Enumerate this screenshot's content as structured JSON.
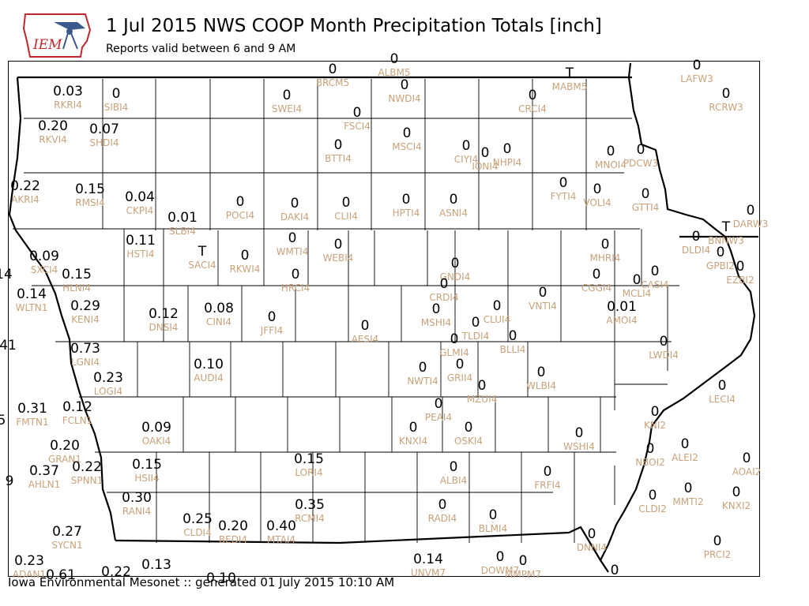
{
  "header": {
    "title": "1 Jul 2015 NWS COOP Month Precipitation Totals [inch]",
    "subtitle": "Reports valid between 6 and 9 AM",
    "logo_text": "IEM"
  },
  "footer": {
    "text": "Iowa Environmental Mesonet :: generated 01 July 2015 10:10 AM"
  },
  "colors": {
    "value": "#000000",
    "station": "#c8a27a",
    "border": "#000000",
    "logo_red": "#c0272d",
    "logo_blue": "#3a5a8c"
  },
  "stations": [
    {
      "id": "RKRI4",
      "value": "0.03"
    },
    {
      "id": "SIBI4",
      "value": "0"
    },
    {
      "id": "BRCM5",
      "value": "0"
    },
    {
      "id": "ALBM5",
      "value": "0"
    },
    {
      "id": "NWDI4",
      "value": "0"
    },
    {
      "id": "MABM5",
      "value": "T"
    },
    {
      "id": "LAFW3",
      "value": "0"
    },
    {
      "id": "RCRW3",
      "value": "0"
    },
    {
      "id": "SWEI4",
      "value": "0"
    },
    {
      "id": "CRCI4",
      "value": "0"
    },
    {
      "id": "FSCI4",
      "value": "0"
    },
    {
      "id": "RKVI4",
      "value": "0.20"
    },
    {
      "id": "SHDI4",
      "value": "0.07"
    },
    {
      "id": "MSCI4",
      "value": "0"
    },
    {
      "id": "BTTI4",
      "value": "0"
    },
    {
      "id": "CIYI4",
      "value": "0"
    },
    {
      "id": "IONI4",
      "value": "0"
    },
    {
      "id": "NHPI4",
      "value": "0"
    },
    {
      "id": "MNOI4",
      "value": "0"
    },
    {
      "id": "PDCW3",
      "value": "0"
    },
    {
      "id": "AKRI4",
      "value": "0.22"
    },
    {
      "id": "RMSI4",
      "value": "0.15"
    },
    {
      "id": "CKPI4",
      "value": "0.04"
    },
    {
      "id": "POCI4",
      "value": "0"
    },
    {
      "id": "DAKI4",
      "value": "0"
    },
    {
      "id": "CLII4",
      "value": "0"
    },
    {
      "id": "HPTI4",
      "value": "0"
    },
    {
      "id": "ASNI4",
      "value": "0"
    },
    {
      "id": "FYTI4",
      "value": "0"
    },
    {
      "id": "VOLI4",
      "value": "0"
    },
    {
      "id": "GTTI4",
      "value": "0"
    },
    {
      "id": "DARW3",
      "value": "0"
    },
    {
      "id": "SLBI4",
      "value": "0.01"
    },
    {
      "id": "BNNW3",
      "value": "T"
    },
    {
      "id": "DLDI4",
      "value": "0"
    },
    {
      "id": "HSTI4",
      "value": "0.11"
    },
    {
      "id": "SACI4",
      "value": "T"
    },
    {
      "id": "RKWI4",
      "value": "0"
    },
    {
      "id": "WMTI4",
      "value": "0"
    },
    {
      "id": "WEBI4",
      "value": "0"
    },
    {
      "id": "MHRI4",
      "value": "0"
    },
    {
      "id": "GPBI2",
      "value": "0"
    },
    {
      "id": "SXCI4",
      "value": "0.09"
    },
    {
      "id": "HLNI4",
      "value": "0.15"
    },
    {
      "id": "HRCI4",
      "value": "0"
    },
    {
      "id": "GNDI4",
      "value": "0"
    },
    {
      "id": "CASI4",
      "value": "0"
    },
    {
      "id": "EZBI2",
      "value": "0"
    },
    {
      "id": "CGGI4",
      "value": "0"
    },
    {
      "id": "MCLI4",
      "value": "0"
    },
    {
      "id": "CRDI4",
      "value": "0"
    },
    {
      "id": "VNTI4",
      "value": "0"
    },
    {
      "id": "WLTN1",
      "value": "0.14"
    },
    {
      "id": "KENI4",
      "value": "0.29"
    },
    {
      "id": "DNSI4",
      "value": "0.12"
    },
    {
      "id": "CINI4",
      "value": "0.08"
    },
    {
      "id": "JFFI4",
      "value": "0"
    },
    {
      "id": "MSHI4",
      "value": "0"
    },
    {
      "id": "CLUI4",
      "value": "0"
    },
    {
      "id": "AMOI4",
      "value": "0.01"
    },
    {
      "id": "TLDI4",
      "value": "0"
    },
    {
      "id": "AESI4",
      "value": "0"
    },
    {
      "id": "BLLI4",
      "value": "0"
    },
    {
      "id": "GLMI4",
      "value": "0"
    },
    {
      "id": "LWDI4",
      "value": "0"
    },
    {
      "id": "LGNI4",
      "value": "0.73"
    },
    {
      "id": "AUDI4",
      "value": "0.10"
    },
    {
      "id": "NWTI4",
      "value": "0"
    },
    {
      "id": "GRII4",
      "value": "0"
    },
    {
      "id": "WLBI4",
      "value": "0"
    },
    {
      "id": "LOGI4",
      "value": "0.23"
    },
    {
      "id": "MZUI4",
      "value": "0"
    },
    {
      "id": "LECI4",
      "value": "0"
    },
    {
      "id": "FMTN1",
      "value": "0.31"
    },
    {
      "id": "FCLN1",
      "value": "0.12"
    },
    {
      "id": "PEAI4",
      "value": "0"
    },
    {
      "id": "OAKI4",
      "value": "0.09"
    },
    {
      "id": "KNXI4",
      "value": "0"
    },
    {
      "id": "OSKI4",
      "value": "0"
    },
    {
      "id": "WSHI4",
      "value": "0"
    },
    {
      "id": "KNI2",
      "value": "0"
    },
    {
      "id": "GRAN1",
      "value": "0.20"
    },
    {
      "id": "ALEI2",
      "value": "0"
    },
    {
      "id": "NBOI2",
      "value": "0"
    },
    {
      "id": "AOAI2",
      "value": "0"
    },
    {
      "id": "AHLN1",
      "value": "0.37"
    },
    {
      "id": "SPNN1",
      "value": "0.22"
    },
    {
      "id": "HSII4",
      "value": "0.15"
    },
    {
      "id": "LORI4",
      "value": "0.15"
    },
    {
      "id": "ALBI4",
      "value": "0"
    },
    {
      "id": "FRFI4",
      "value": "0"
    },
    {
      "id": "MMTI2",
      "value": "0"
    },
    {
      "id": "KNXI2",
      "value": "0"
    },
    {
      "id": "RANI4",
      "value": "0.30"
    },
    {
      "id": "RCMI4",
      "value": "0.35"
    },
    {
      "id": "RADI4",
      "value": "0"
    },
    {
      "id": "BLMI4",
      "value": "0"
    },
    {
      "id": "CLDI2",
      "value": "0"
    },
    {
      "id": "CLDI4",
      "value": "0.25"
    },
    {
      "id": "BEDI4",
      "value": "0.20"
    },
    {
      "id": "MTAI4",
      "value": "0.40"
    },
    {
      "id": "SYCN1",
      "value": "0.27"
    },
    {
      "id": "DNNI4",
      "value": "0"
    },
    {
      "id": "PRCI2",
      "value": "0"
    },
    {
      "id": "ADAN1",
      "value": "0.23"
    },
    {
      "id": "UNVM7",
      "value": "0.14"
    },
    {
      "id": "DOWM7",
      "value": "0"
    },
    {
      "id": "MMPM7",
      "value": "0"
    }
  ],
  "partial_values": [
    "14",
    "41",
    "5",
    "9",
    "0.61",
    "0.22",
    "0.13",
    "0.10",
    "0"
  ]
}
